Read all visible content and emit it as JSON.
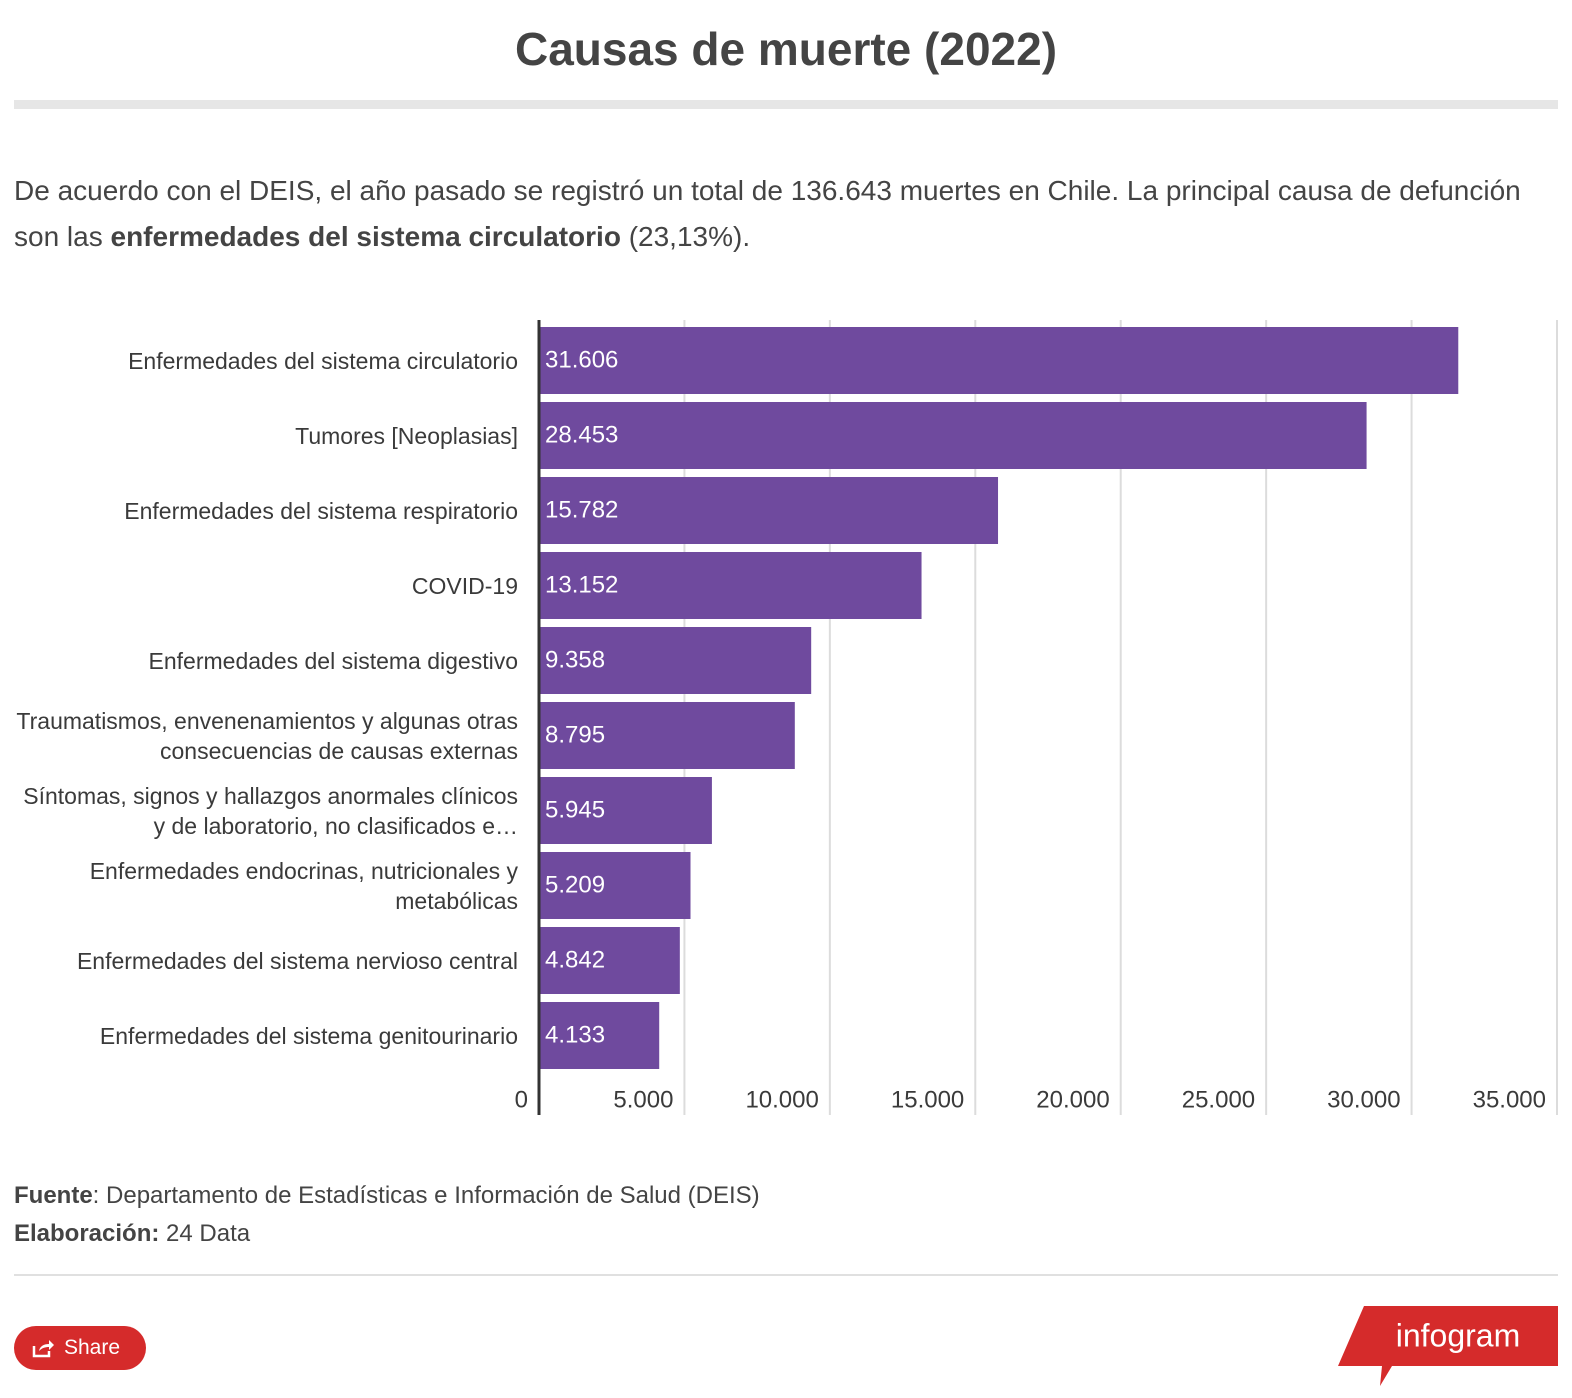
{
  "header": {
    "title": "Causas de muerte (2022)"
  },
  "subtitle": [
    "De acuerdo con el DEIS, el año pasado se registró un total de 136.643 muertes en Chile. La principal causa de defunción son las ",
    "enfermedades del sistema circulatorio",
    " (23,13%)."
  ],
  "chart_data": {
    "type": "bar",
    "orientation": "horizontal",
    "color": "#6f4a9e",
    "grid": true,
    "categories": [
      "Enfermedades del sistema circulatorio",
      "Tumores [Neoplasias]",
      "Enfermedades del sistema respiratorio",
      "COVID-19",
      "Enfermedades del sistema digestivo",
      "Traumatismos, envenenamientos y algunas otras consecuencias de causas externas",
      "Síntomas, signos y hallazgos anormales clínicos y de laboratorio, no clasificados e…",
      "Enfermedades endocrinas, nutricionales y metabólicas",
      "Enfermedades del sistema nervioso central",
      "Enfermedades del sistema genitourinario"
    ],
    "values": [
      31606,
      28453,
      15782,
      13152,
      9358,
      8795,
      5945,
      5209,
      4842,
      4133
    ],
    "value_labels": [
      "31.606",
      "28.453",
      "15.782",
      "13.152",
      "9.358",
      "8.795",
      "5.945",
      "5.209",
      "4.842",
      "4.133"
    ],
    "xlim": [
      0,
      35000
    ],
    "xticks": [
      0,
      {
        "value": 5000,
        "label": "5.000"
      },
      {
        "value": 10000,
        "label": "10.000"
      },
      {
        "value": 15000,
        "label": "15.000"
      },
      {
        "value": 20000,
        "label": "20.000"
      },
      {
        "value": 25000,
        "label": "25.000"
      },
      {
        "value": 30000,
        "label": "30.000"
      },
      {
        "value": 35000,
        "label": "35.000"
      }
    ]
  },
  "footer": {
    "source_label": "Fuente",
    "source": ": Departamento de Estadísticas e Información de Salud (DEIS)",
    "credit_label": "Elaboración:",
    "credit": " 24 Data"
  },
  "share": "Share",
  "logo": "infogram"
}
